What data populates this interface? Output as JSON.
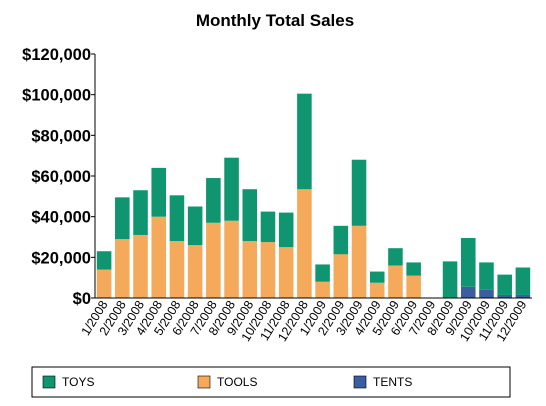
{
  "chart_data": {
    "type": "bar",
    "stacked": true,
    "title": "Monthly Total Sales",
    "xlabel": "",
    "ylabel": "",
    "ylim": [
      0,
      120000
    ],
    "yticks": [
      0,
      20000,
      40000,
      60000,
      80000,
      100000,
      120000
    ],
    "ytick_labels": [
      "$0",
      "$20,000",
      "$40,000",
      "$60,000",
      "$80,000",
      "$100,000",
      "$120,000"
    ],
    "grid": false,
    "legend_position": "bottom",
    "categories": [
      "1/2008",
      "2/2008",
      "3/2008",
      "4/2008",
      "5/2008",
      "6/2008",
      "7/2008",
      "8/2008",
      "9/2008",
      "10/2008",
      "11/2008",
      "12/2008",
      "1/2009",
      "2/2009",
      "3/2009",
      "4/2009",
      "5/2009",
      "6/2009",
      "7/2009",
      "8/2009",
      "9/2009",
      "10/2009",
      "11/2009",
      "12/2009"
    ],
    "series": [
      {
        "name": "TENTS",
        "color": "#3a5ea0",
        "values": [
          0,
          0,
          0,
          0,
          0,
          0,
          0,
          0,
          0,
          0,
          0,
          0,
          0,
          0,
          0,
          0,
          0,
          0,
          0,
          0,
          5500,
          4000,
          1500,
          1500
        ]
      },
      {
        "name": "TOOLS",
        "color": "#f5a95a",
        "values": [
          14000,
          29000,
          31000,
          40000,
          28000,
          26000,
          37000,
          38000,
          28000,
          27500,
          25000,
          53500,
          8000,
          21500,
          35500,
          7500,
          16000,
          11000,
          0,
          0,
          0,
          0,
          0,
          0
        ]
      },
      {
        "name": "TOYS",
        "color": "#0f9670",
        "values": [
          9000,
          20500,
          22000,
          24000,
          22500,
          19000,
          22000,
          31000,
          25500,
          15000,
          17000,
          47000,
          8500,
          14000,
          32500,
          5500,
          8500,
          6500,
          0,
          18000,
          24000,
          13500,
          10000,
          13500
        ]
      }
    ],
    "legend_order": [
      "TOYS",
      "TOOLS",
      "TENTS"
    ]
  }
}
